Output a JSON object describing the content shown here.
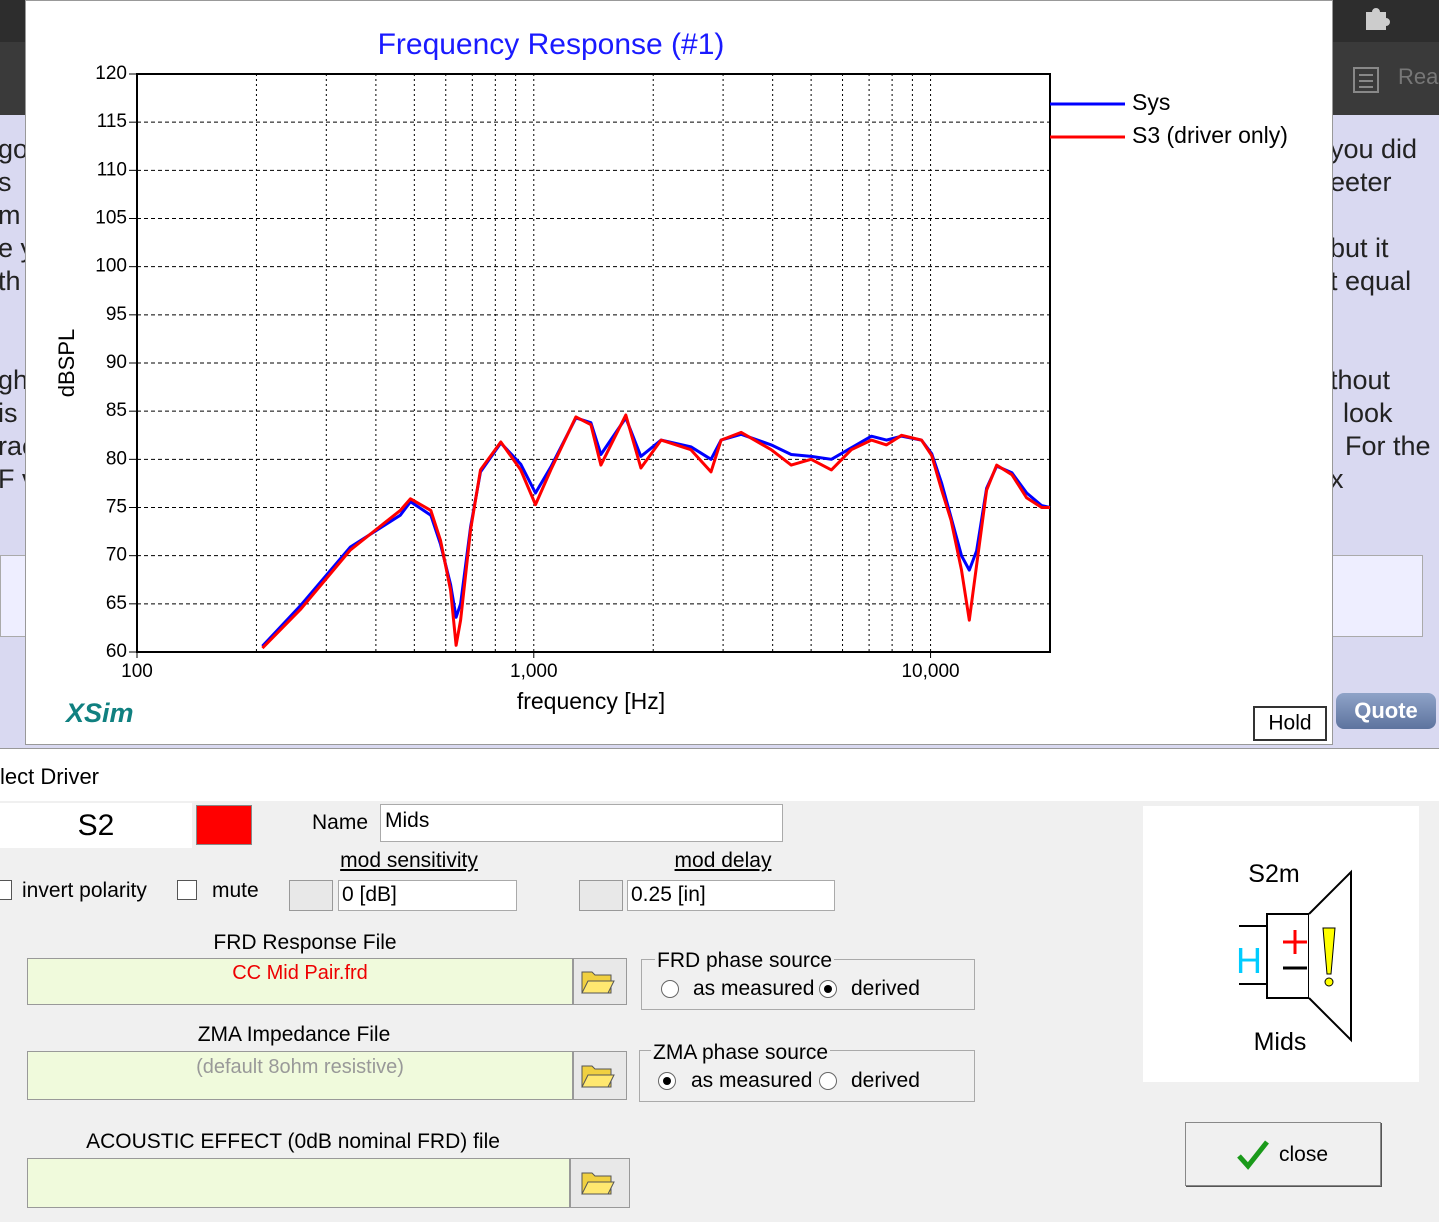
{
  "chart_data": {
    "type": "line",
    "title": "Frequency Response (#1)",
    "xlabel": "frequency [Hz]",
    "ylabel": "dBSPL",
    "x": [
      207,
      258,
      345,
      461,
      489,
      550,
      582,
      617,
      637,
      654,
      693,
      734,
      826,
      927,
      1010,
      1104,
      1277,
      1393,
      1476,
      1706,
      1862,
      2093,
      2489,
      2797,
      2966,
      3333,
      3966,
      4454,
      5000,
      5623,
      6313,
      7094,
      7742,
      8451,
      9487,
      10064,
      10665,
      11258,
      11967,
      12520,
      13060,
      13840,
      14680,
      16030,
      17470,
      19060,
      20000
    ],
    "series": [
      {
        "name": "Sys",
        "color": "#0000ff",
        "values": [
          60.6,
          64.8,
          70.9,
          74.2,
          75.6,
          74.2,
          71.2,
          67,
          63.6,
          65,
          73,
          78.7,
          81.7,
          79.5,
          76.5,
          79.2,
          84.3,
          83.8,
          80.5,
          84.3,
          80.3,
          82,
          81.3,
          80,
          82,
          82.6,
          81.5,
          80.5,
          80.3,
          80,
          81.2,
          82.4,
          82,
          82.4,
          82,
          80.6,
          77.5,
          74,
          70,
          68.5,
          70.5,
          77,
          79.3,
          78.6,
          76.5,
          75.2,
          75
        ]
      },
      {
        "name": "S3 (driver only)",
        "color": "#ff0000",
        "values": [
          60.4,
          64.4,
          70.6,
          74.7,
          75.9,
          74.7,
          71.6,
          66.4,
          60.7,
          63.3,
          72.7,
          78.9,
          81.8,
          78.9,
          75.3,
          78.9,
          84.4,
          83.6,
          79.4,
          84.6,
          79.1,
          82,
          81,
          78.7,
          82,
          82.8,
          81,
          79.4,
          80,
          78.9,
          81,
          82,
          81.5,
          82.5,
          82,
          80.4,
          76.8,
          73.7,
          68.5,
          63.3,
          69,
          76.8,
          79.4,
          78.4,
          76,
          75,
          75
        ]
      }
    ],
    "xlim": [
      100,
      20000
    ],
    "ylim": [
      60,
      120
    ],
    "xticks": [
      100,
      {
        "value": 1000,
        "label": "1,000"
      },
      {
        "value": 10000,
        "label": "10,000"
      }
    ],
    "x_minor_grid": [
      200,
      300,
      400,
      500,
      600,
      700,
      800,
      900,
      2000,
      3000,
      4000,
      5000,
      6000,
      7000,
      8000,
      9000
    ],
    "yticks": [
      60,
      65,
      70,
      75,
      80,
      85,
      90,
      95,
      100,
      105,
      110,
      115,
      120
    ],
    "log_x": true,
    "grid": true,
    "legend": "right"
  },
  "app": {
    "brand": "XSim",
    "hold": "Hold"
  },
  "background": {
    "left_text": [
      "go",
      "s",
      "m",
      "e y",
      "th",
      "ght",
      "is",
      "rac",
      "F v"
    ],
    "right_text": [
      "you did",
      "eeter",
      "but it",
      "t equal",
      "thout",
      "look",
      "For the",
      "x"
    ],
    "quote": "Quote",
    "reader": "Rea"
  },
  "dialog": {
    "title": "lect Driver",
    "driver_id": "S2",
    "driver_color": "#ff0000",
    "name_label": "Name",
    "name_value": "Mids",
    "mod_sensitivity_label": "mod sensitivity",
    "mod_sensitivity_value": "0 [dB]",
    "mod_delay_label": "mod delay",
    "mod_delay_value": "0.25 [in]",
    "invert_polarity": "invert polarity",
    "mute": "mute",
    "frd": {
      "label": "FRD Response File",
      "file": "CC Mid Pair.frd",
      "phase_label": "FRD phase source",
      "options": [
        "as measured",
        "derived"
      ],
      "selected": 1
    },
    "zma": {
      "label": "ZMA Impedance File",
      "file": "(default 8ohm resistive)",
      "phase_label": "ZMA phase source",
      "options": [
        "as measured",
        "derived"
      ],
      "selected": 0
    },
    "acoustic": {
      "label": "ACOUSTIC EFFECT (0dB nominal FRD) file"
    },
    "symbol": {
      "top": "S2m",
      "bottom": "Mids",
      "h": "H"
    },
    "close": "close"
  }
}
